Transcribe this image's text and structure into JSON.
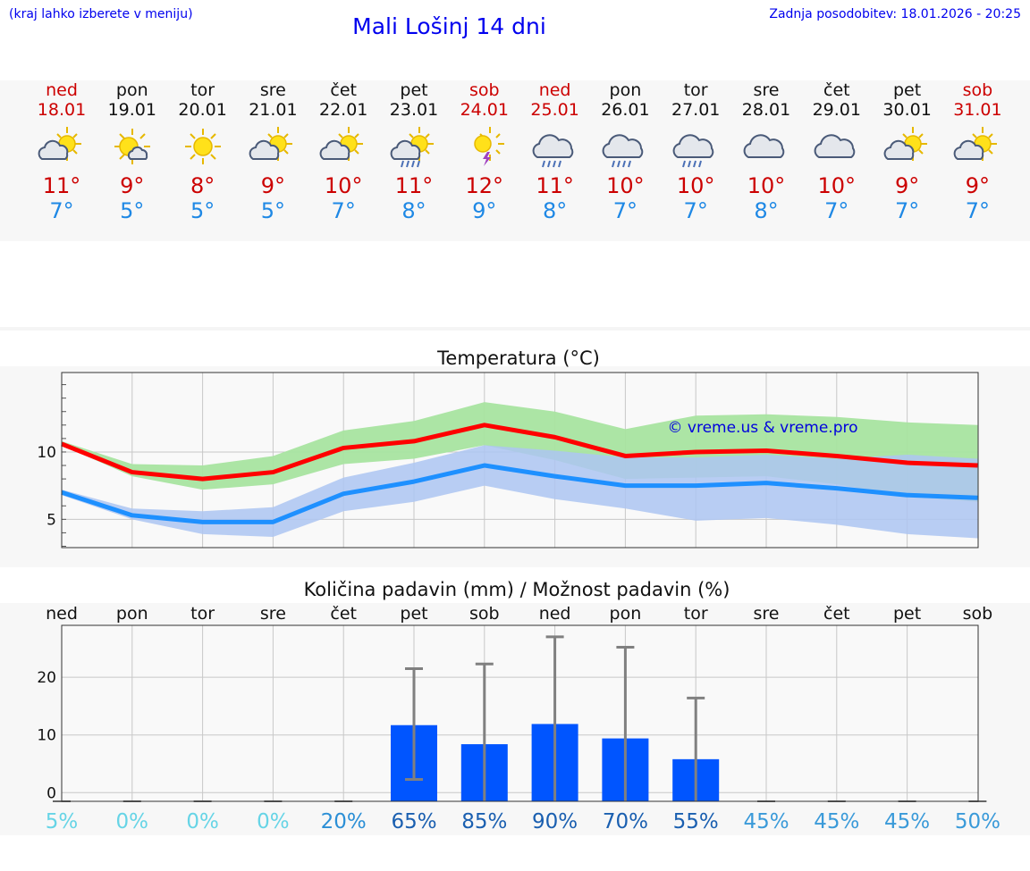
{
  "header": {
    "hint": "(kraj lahko izberete v meniju)",
    "title": "Mali Lošinj 14 dni",
    "updated": "Zadnja posodobitev: 18.01.2026 - 20:25"
  },
  "days": [
    {
      "name": "ned",
      "date": "18.01",
      "icon": "partly-cloudy-sun-icon",
      "max": "11°",
      "min": "7°",
      "weekend": true
    },
    {
      "name": "pon",
      "date": "19.01",
      "icon": "sun-small-cloud-icon",
      "max": "9°",
      "min": "5°",
      "weekend": false
    },
    {
      "name": "tor",
      "date": "20.01",
      "icon": "sun-icon",
      "max": "8°",
      "min": "5°",
      "weekend": false
    },
    {
      "name": "sre",
      "date": "21.01",
      "icon": "partly-cloudy-sun-icon",
      "max": "9°",
      "min": "5°",
      "weekend": false
    },
    {
      "name": "čet",
      "date": "22.01",
      "icon": "partly-cloudy-sun-icon",
      "max": "10°",
      "min": "7°",
      "weekend": false
    },
    {
      "name": "pet",
      "date": "23.01",
      "icon": "sun-cloud-rain-icon",
      "max": "11°",
      "min": "8°",
      "weekend": false
    },
    {
      "name": "sob",
      "date": "24.01",
      "icon": "sun-thunderstorm-icon",
      "max": "12°",
      "min": "9°",
      "weekend": true
    },
    {
      "name": "ned",
      "date": "25.01",
      "icon": "cloud-rain-icon",
      "max": "11°",
      "min": "8°",
      "weekend": true
    },
    {
      "name": "pon",
      "date": "26.01",
      "icon": "cloud-rain-icon",
      "max": "10°",
      "min": "7°",
      "weekend": false
    },
    {
      "name": "tor",
      "date": "27.01",
      "icon": "cloud-rain-icon",
      "max": "10°",
      "min": "7°",
      "weekend": false
    },
    {
      "name": "sre",
      "date": "28.01",
      "icon": "cloudy-icon",
      "max": "10°",
      "min": "8°",
      "weekend": false
    },
    {
      "name": "čet",
      "date": "29.01",
      "icon": "cloudy-icon",
      "max": "10°",
      "min": "7°",
      "weekend": false
    },
    {
      "name": "pet",
      "date": "30.01",
      "icon": "partly-cloudy-sun-icon",
      "max": "9°",
      "min": "7°",
      "weekend": false
    },
    {
      "name": "sob",
      "date": "31.01",
      "icon": "partly-cloudy-sun-icon",
      "max": "9°",
      "min": "7°",
      "weekend": true
    }
  ],
  "chart_data": [
    {
      "type": "line",
      "title": "Temperatura (°C)",
      "xlabel": "",
      "ylabel": "",
      "ylim": [
        2.9,
        15.9
      ],
      "yticks": [
        5,
        10
      ],
      "categories": [
        "18.01",
        "19.01",
        "20.01",
        "21.01",
        "22.01",
        "23.01",
        "24.01",
        "25.01",
        "26.01",
        "27.01",
        "28.01",
        "29.01",
        "30.01",
        "31.01"
      ],
      "watermark": "© vreme.us & vreme.pro",
      "series": [
        {
          "name": "max",
          "color": "#ff0000",
          "values": [
            10.6,
            8.5,
            8.0,
            8.5,
            10.3,
            10.8,
            12.0,
            11.1,
            9.7,
            10.0,
            10.1,
            9.7,
            9.2,
            9.0
          ]
        },
        {
          "name": "min",
          "color": "#1e90ff",
          "values": [
            7.0,
            5.3,
            4.8,
            4.8,
            6.9,
            7.8,
            9.0,
            8.2,
            7.5,
            7.5,
            7.7,
            7.3,
            6.8,
            6.6
          ]
        },
        {
          "name": "max-range",
          "color": "#a8e4a0",
          "low": [
            10.5,
            8.2,
            7.2,
            7.6,
            9.1,
            9.5,
            10.5,
            9.4,
            8.0,
            8.1,
            8.2,
            7.6,
            6.7,
            6.3
          ],
          "high": [
            10.8,
            9.1,
            9.0,
            9.7,
            11.6,
            12.3,
            13.7,
            13.0,
            11.7,
            12.7,
            12.8,
            12.6,
            12.2,
            12.0
          ]
        },
        {
          "name": "min-range",
          "color": "#adc6f2",
          "low": [
            6.8,
            5.0,
            3.9,
            3.7,
            5.6,
            6.3,
            7.5,
            6.5,
            5.8,
            4.9,
            5.1,
            4.6,
            3.9,
            3.6
          ],
          "high": [
            7.2,
            5.8,
            5.6,
            5.9,
            8.1,
            9.2,
            10.5,
            10.1,
            9.6,
            9.6,
            9.8,
            9.5,
            9.8,
            9.5
          ]
        }
      ]
    },
    {
      "type": "bar",
      "title": "Količina padavin (mm) / Možnost padavin (%)",
      "xlabel": "",
      "ylabel": "",
      "ylim": [
        -1.5,
        29
      ],
      "yticks": [
        0,
        10,
        20
      ],
      "categories": [
        "ned",
        "pon",
        "tor",
        "sre",
        "čet",
        "pet",
        "sob",
        "ned",
        "pon",
        "tor",
        "sre",
        "čet",
        "pet",
        "sob"
      ],
      "values": [
        0,
        0,
        0,
        0,
        0,
        11.7,
        8.4,
        11.9,
        9.4,
        5.8,
        0,
        0,
        0,
        0
      ],
      "error_low": [
        0,
        0,
        0,
        0,
        0,
        2.3,
        0,
        0,
        0,
        0,
        0,
        0,
        0,
        0
      ],
      "error_high": [
        0,
        0,
        0,
        0,
        0,
        21.5,
        22.3,
        27.0,
        25.2,
        16.4,
        0,
        0,
        0,
        0
      ],
      "probability": [
        "5%",
        "0%",
        "0%",
        "0%",
        "20%",
        "65%",
        "85%",
        "90%",
        "70%",
        "55%",
        "45%",
        "45%",
        "45%",
        "50%"
      ],
      "probability_colors": [
        "#66d4e6",
        "#66d4e6",
        "#66d4e6",
        "#66d4e6",
        "#2b8fd6",
        "#1a5fb0",
        "#1a5fb0",
        "#1a5fb0",
        "#1a5fb0",
        "#1a5fb0",
        "#3a9ad9",
        "#3a9ad9",
        "#3a9ad9",
        "#3a9ad9"
      ],
      "bar_color": "#0055ff"
    }
  ]
}
